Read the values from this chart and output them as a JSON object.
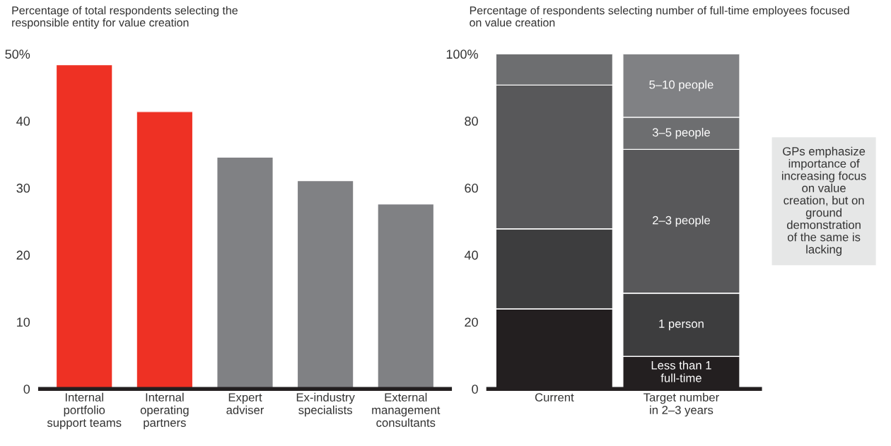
{
  "chart_data": [
    {
      "type": "bar",
      "title": "Percentage of total respondents selecting the\nresponsible entity for value creation",
      "categories": [
        "Internal\nportfolio\nsupport teams",
        "Internal\noperating\npartners",
        "Expert\nadviser",
        "Ex-industry\nspecialists",
        "External\nmanagement\nconsultants"
      ],
      "values": [
        48.4,
        41.4,
        34.6,
        31.1,
        27.6
      ],
      "colors": [
        "#ee3124",
        "#ee3124",
        "#808184",
        "#808184",
        "#808184"
      ],
      "ylim": [
        0,
        50
      ],
      "yticks": [
        0,
        10,
        20,
        30,
        40,
        {
          "value": 50,
          "label": "50%"
        }
      ],
      "grid": false,
      "legend": false
    },
    {
      "type": "bar",
      "stacked": true,
      "title": "Percentage of respondents selecting number of full-time employees focused\non value creation",
      "categories": [
        "Current",
        "Target number\nin 2–3 years"
      ],
      "series": [
        {
          "name": "Less than 1\nfull-time",
          "color": "#231f20",
          "values": [
            23.9,
            9.7
          ]
        },
        {
          "name": "1 person",
          "color": "#3d3d3e",
          "values": [
            23.9,
            18.9
          ]
        },
        {
          "name": "2–3 people",
          "color": "#58585a",
          "values": [
            42.9,
            42.9
          ]
        },
        {
          "name": "3–5 people",
          "color": "#6d6e70",
          "values": [
            9.3,
            9.6
          ]
        },
        {
          "name": "5–10 people",
          "color": "#808184",
          "values": [
            null,
            18.9
          ]
        }
      ],
      "ylim": [
        0,
        100
      ],
      "yticks": [
        0,
        20,
        40,
        60,
        80,
        {
          "value": 100,
          "label": "100%"
        }
      ],
      "grid": false,
      "legend": false,
      "annotations": [
        "GPs emphasize\nimportance of\nincreasing focus\non value\ncreation, but on\nground\ndemonstration\nof the same is\nlacking"
      ]
    }
  ]
}
